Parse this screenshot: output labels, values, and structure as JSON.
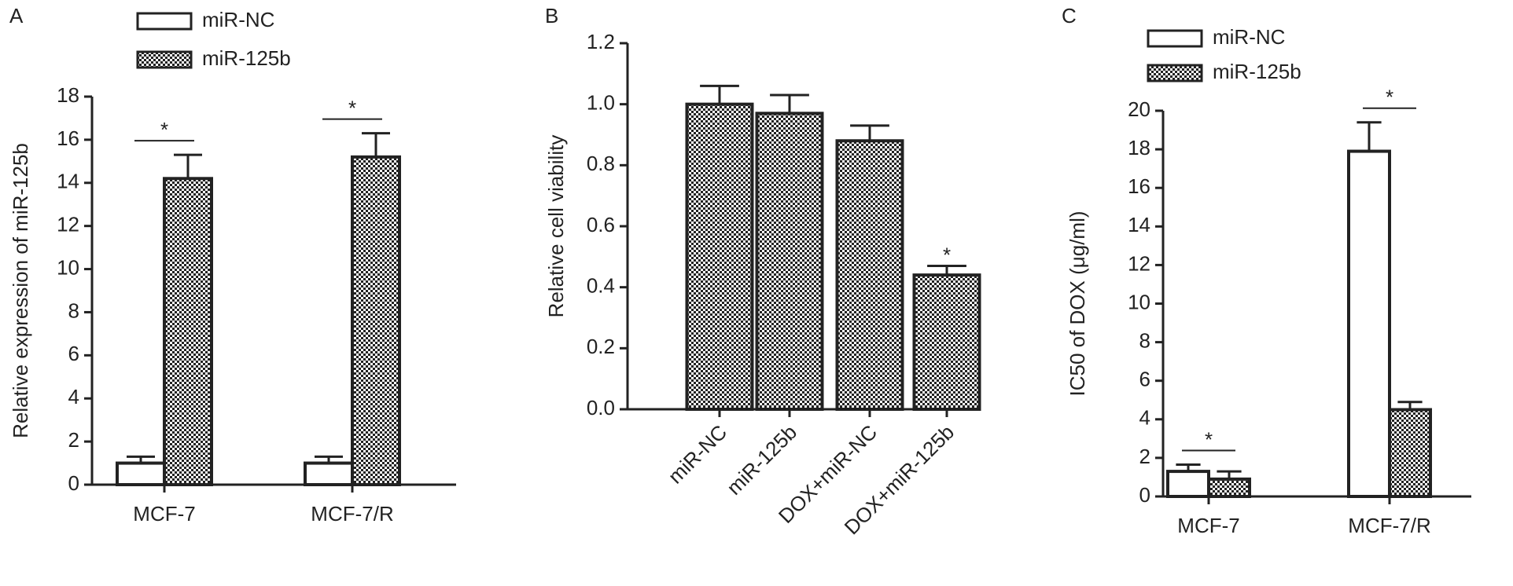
{
  "chart_data": [
    {
      "type": "bar",
      "panel_label": "A",
      "y_label": "Relative expression of miR-125b",
      "categories": [
        "MCF-7",
        "MCF-7/R"
      ],
      "series": [
        {
          "name": "miR-NC",
          "color": "#ffffff",
          "values": [
            1.0,
            1.0
          ],
          "errors": [
            0.3,
            0.3
          ]
        },
        {
          "name": "miR-125b",
          "pattern": "checker",
          "values": [
            14.2,
            15.2
          ],
          "errors": [
            1.1,
            1.1
          ]
        }
      ],
      "significance": [
        "*",
        "*"
      ],
      "ylim": [
        0,
        18
      ],
      "yticks": [
        0,
        2,
        4,
        6,
        8,
        10,
        12,
        14,
        16,
        18
      ],
      "legend": "upper left"
    },
    {
      "type": "bar",
      "panel_label": "B",
      "y_label": "Relative cell viability",
      "categories": [
        "miR-NC",
        "miR-125b",
        "DOX+miR-NC",
        "DOX+miR-125b"
      ],
      "values": [
        1.0,
        0.97,
        0.88,
        0.44
      ],
      "errors": [
        0.06,
        0.06,
        0.05,
        0.03
      ],
      "pattern": "checker",
      "significance": [
        null,
        null,
        null,
        "*"
      ],
      "ylim": [
        0,
        1.2
      ],
      "yticks": [
        {
          "value": 0,
          "label": "0.0"
        },
        {
          "value": 0.2,
          "label": "0.2"
        },
        {
          "value": 0.4,
          "label": "0.4"
        },
        {
          "value": 0.6,
          "label": "0.6"
        },
        {
          "value": 0.8,
          "label": "0.8"
        },
        {
          "value": 1,
          "label": "1.0"
        },
        {
          "value": 1.2,
          "label": "1.2"
        }
      ],
      "xtick_rotation": -45
    },
    {
      "type": "bar",
      "panel_label": "C",
      "y_label": "IC50 of DOX (μg/ml)",
      "categories": [
        "MCF-7",
        "MCF-7/R"
      ],
      "series": [
        {
          "name": "miR-NC",
          "color": "#ffffff",
          "values": [
            1.3,
            17.9
          ],
          "errors": [
            0.35,
            1.5
          ]
        },
        {
          "name": "miR-125b",
          "pattern": "checker",
          "values": [
            0.9,
            4.5
          ],
          "errors": [
            0.4,
            0.4
          ]
        }
      ],
      "significance": [
        "*",
        "*"
      ],
      "ylim": [
        0,
        20
      ],
      "yticks": [
        0,
        2,
        4,
        6,
        8,
        10,
        12,
        14,
        16,
        18,
        20
      ],
      "legend": "upper left"
    }
  ]
}
